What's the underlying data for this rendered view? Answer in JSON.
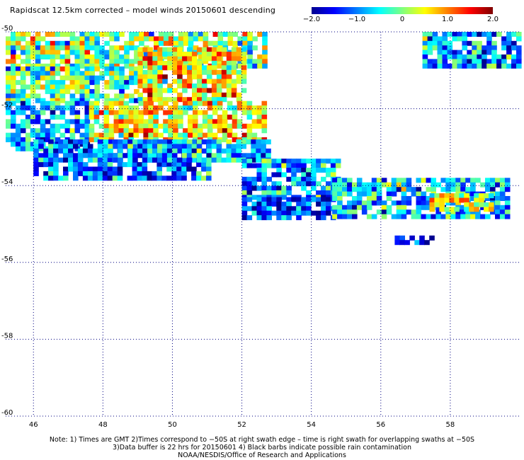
{
  "title": "Rapidscat 12.5km corrected – model winds 20150601 descending",
  "colorbar": {
    "labels": [
      "−2.0",
      "−1.0",
      "0",
      "1.0",
      "2.0"
    ],
    "label_values": [
      -2.0,
      -1.0,
      0,
      1.0,
      2.0
    ],
    "colors": [
      "#00008f",
      "#0000ff",
      "#007fff",
      "#00ffff",
      "#7fff7f",
      "#ffff00",
      "#ff7f00",
      "#ff0000",
      "#7f0000"
    ]
  },
  "notes": [
    "Note: 1) Times are GMT 2)Times correspond to −50S at right swath edge – time is right swath for overlapping swaths at −50S",
    "3)Data buffer is 22 hrs for 20150601 4) Black barbs indicate possible rain contamination",
    "NOAA/NESDIS/Office of Research and Applications"
  ],
  "chart_data": {
    "type": "heatmap",
    "x_ticks": [
      46,
      48,
      50,
      52,
      54,
      56,
      58
    ],
    "x_tick_labels": [
      "46",
      "48",
      "50",
      "52",
      "54",
      "56",
      "58"
    ],
    "y_ticks": [
      -50,
      -52,
      -54,
      -56,
      -58,
      -60
    ],
    "y_tick_labels": [
      "-50",
      "-52",
      "-54",
      "-56",
      "-58",
      "-60"
    ],
    "xlim": [
      45.2,
      60.0
    ],
    "ylim": [
      -60,
      -50
    ],
    "grid": true,
    "value_range": [
      -2.0,
      2.0
    ],
    "regions": [
      {
        "lon": [
          45.2,
          52.6
        ],
        "lat": [
          -50.0,
          -50.9
        ],
        "mean": 0.0
      },
      {
        "lon": [
          45.2,
          49.0
        ],
        "lat": [
          -50.9,
          -51.8
        ],
        "mean": -0.2
      },
      {
        "lon": [
          49.0,
          52.1
        ],
        "lat": [
          -50.4,
          -51.8
        ],
        "mean": 0.6
      },
      {
        "lon": [
          45.2,
          47.6
        ],
        "lat": [
          -51.8,
          -53.0
        ],
        "mean": -0.9
      },
      {
        "lon": [
          47.6,
          52.6
        ],
        "lat": [
          -51.8,
          -52.8
        ],
        "mean": 0.5
      },
      {
        "lon": [
          46.0,
          51.0
        ],
        "lat": [
          -52.8,
          -53.8
        ],
        "mean": -1.1
      },
      {
        "lon": [
          48.0,
          52.8
        ],
        "lat": [
          -52.8,
          -53.3
        ],
        "mean": -0.8
      },
      {
        "lon": [
          52.0,
          54.8
        ],
        "lat": [
          -53.3,
          -54.3
        ],
        "mean": -0.9
      },
      {
        "lon": [
          52.0,
          54.6
        ],
        "lat": [
          -54.3,
          -54.8
        ],
        "mean": -1.3
      },
      {
        "lon": [
          54.6,
          59.6
        ],
        "lat": [
          -53.8,
          -54.8
        ],
        "mean": -0.7
      },
      {
        "lon": [
          57.4,
          59.2
        ],
        "lat": [
          -54.2,
          -54.6
        ],
        "mean": 0.4
      },
      {
        "lon": [
          56.4,
          57.4
        ],
        "lat": [
          -55.3,
          -55.5
        ],
        "mean": -1.6
      },
      {
        "lon": [
          57.2,
          60.0
        ],
        "lat": [
          -50.0,
          -50.9
        ],
        "mean": -0.9
      }
    ]
  }
}
